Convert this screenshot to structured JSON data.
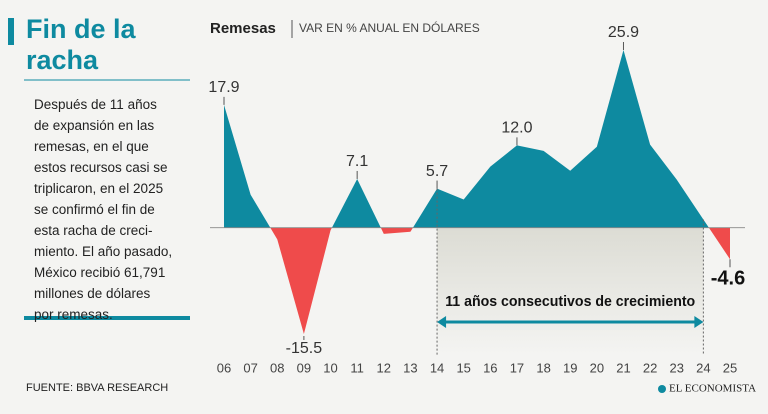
{
  "panel_title": "Fin de la racha",
  "body_lines": [
    "Después de 11 años",
    "de expansión en las",
    "remesas, en el que",
    "estos recursos casi se",
    "triplicaron, en el 2025",
    "se confirmó el fin de",
    "esta racha de creci-",
    "miento. El año pasado,",
    "México recibió 61,791",
    "millones de dólares",
    "por remesas."
  ],
  "source": "FUENTE: BBVA RESEARCH",
  "brand": "EL ECONOMISTA",
  "chart_data": {
    "type": "area",
    "title": "Remesas",
    "subtitle": "VAR EN % ANUAL EN DÓLARES",
    "categories": [
      "06",
      "07",
      "08",
      "09",
      "10",
      "11",
      "12",
      "13",
      "14",
      "15",
      "16",
      "17",
      "18",
      "19",
      "20",
      "21",
      "22",
      "23",
      "24",
      "25"
    ],
    "values": [
      17.9,
      4.8,
      -1.7,
      -15.5,
      -0.4,
      7.1,
      -0.9,
      -0.6,
      5.7,
      4.1,
      8.9,
      12.0,
      11.2,
      8.3,
      11.8,
      25.9,
      12.1,
      7.0,
      1.2,
      -4.6
    ],
    "value_labels": [
      "17.9",
      null,
      null,
      "-15.5",
      null,
      "7.1",
      null,
      null,
      "5.7",
      null,
      null,
      "12.0",
      null,
      null,
      null,
      "25.9",
      null,
      null,
      null,
      "-4.6"
    ],
    "positive_color": "#0e8aa0",
    "negative_color": "#ef4b4b",
    "annotation": {
      "text": "11 años consecutivos de crecimiento",
      "span": [
        "14",
        "24"
      ]
    }
  }
}
